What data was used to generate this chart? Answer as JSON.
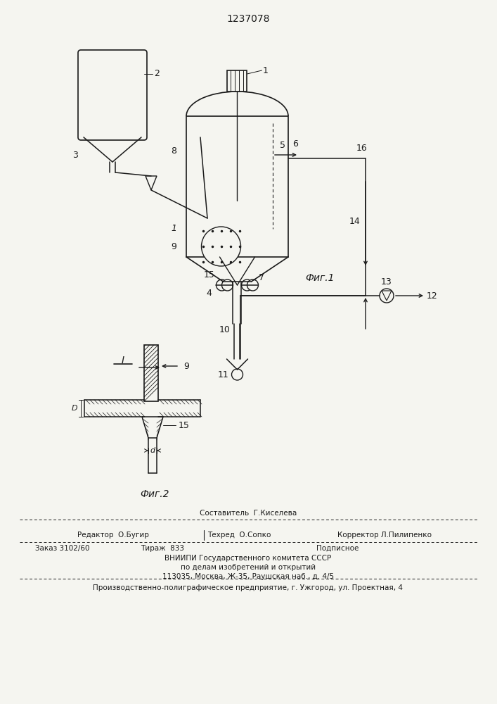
{
  "patent_number": "1237078",
  "fig1_label": "Фиг.1",
  "fig2_label": "Фиг.2",
  "bg_color": "#f5f5f0",
  "line_color": "#1a1a1a",
  "footer": {
    "row0": "Составитель  Г.Киселева",
    "row1_left": "Редактор  О.Бугир",
    "row1_mid": "Техред  О.Сопко",
    "row1_right": "Корректор Л.Пилипенко",
    "row2_left": "Заказ 3102/60",
    "row2_mid": "Тираж  833",
    "row2_right": "Подписное",
    "row3": "ВНИИПИ Государственного комитета СССР",
    "row4": "по делам изобретений и открытий",
    "row5": "113035, Москва, Ж-35, Раушская наб., д. 4/5",
    "row6": "Производственно-полиграфическое предприятие, г. Ужгород, ул. Проектная, 4"
  }
}
